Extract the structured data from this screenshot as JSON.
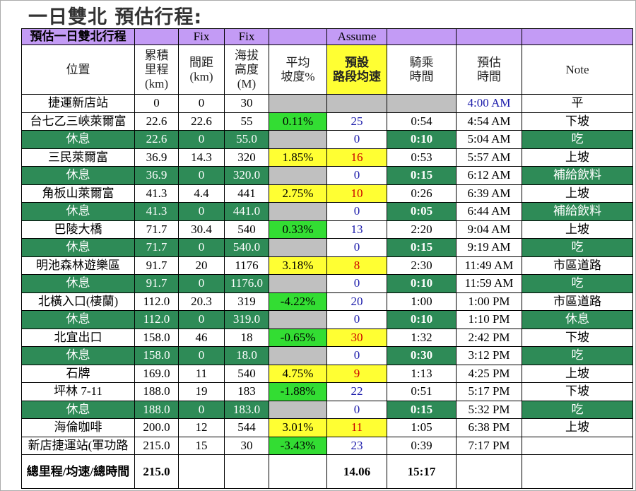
{
  "header": {
    "title": "一日雙北 預估行程:"
  },
  "table": {
    "top_row": [
      "預估一日雙北行程",
      "Fix",
      "Fix",
      "Assume"
    ],
    "head_row": [
      "位置",
      "累積\n里程\n(km)",
      "間距\n(km)",
      "海拔\n高度\n(M)",
      "平均\n坡度%",
      "預設\n路段均速",
      "騎乘\n時間",
      "預估\n時間",
      "Note"
    ],
    "rows": [
      [
        "捷運新店站",
        "0",
        "0",
        "30",
        null,
        null,
        null,
        "4:00 AM",
        "平"
      ],
      [
        "台七乙三峽萊爾富",
        "22.6",
        "22.6",
        "55",
        "0.11%",
        "25",
        "0:54",
        "4:54 AM",
        "下坡"
      ],
      [
        "休息",
        "22.6",
        "0",
        "55.0",
        null,
        "0",
        "0:10",
        "5:04 AM",
        "吃"
      ],
      [
        "三民萊爾富",
        "36.9",
        "14.3",
        "320",
        "1.85%",
        "16",
        "0:53",
        "5:57 AM",
        "上坡"
      ],
      [
        "休息",
        "36.9",
        "0",
        "320.0",
        null,
        "0",
        "0:15",
        "6:12 AM",
        "補給飲料"
      ],
      [
        "角板山萊爾富",
        "41.3",
        "4.4",
        "441",
        "2.75%",
        "10",
        "0:26",
        "6:39 AM",
        "上坡"
      ],
      [
        "休息",
        "41.3",
        "0",
        "441.0",
        null,
        "0",
        "0:05",
        "6:44 AM",
        "補給飲料"
      ],
      [
        "巴陵大橋",
        "71.7",
        "30.4",
        "540",
        "0.33%",
        "13",
        "2:20",
        "9:04 AM",
        "上坡"
      ],
      [
        "休息",
        "71.7",
        "0",
        "540.0",
        null,
        "0",
        "0:15",
        "9:19 AM",
        "吃"
      ],
      [
        "明池森林遊樂區",
        "91.7",
        "20",
        "1176",
        "3.18%",
        "8",
        "2:30",
        "11:49 AM",
        "市區道路"
      ],
      [
        "休息",
        "91.7",
        "0",
        "1176.0",
        null,
        "0",
        "0:10",
        "11:59 AM",
        "吃"
      ],
      [
        "北橫入口(棲蘭)",
        "112.0",
        "20.3",
        "319",
        "-4.22%",
        "20",
        "1:00",
        "1:00 PM",
        "市區道路"
      ],
      [
        "休息",
        "112.0",
        "0",
        "319.0",
        null,
        "0",
        "0:10",
        "1:10 PM",
        "休息"
      ],
      [
        "北宜出口",
        "158.0",
        "46",
        "18",
        "-0.65%",
        "30",
        "1:32",
        "2:42 PM",
        "下坡"
      ],
      [
        "休息",
        "158.0",
        "0",
        "18.0",
        null,
        "0",
        "0:30",
        "3:12 PM",
        "吃"
      ],
      [
        "石牌",
        "169.0",
        "11",
        "540",
        "4.75%",
        "9",
        "1:13",
        "4:25 PM",
        "上坡"
      ],
      [
        "坪林 7-11",
        "188.0",
        "19",
        "183",
        "-1.88%",
        "22",
        "0:51",
        "5:17 PM",
        "下坡"
      ],
      [
        "休息",
        "188.0",
        "0",
        "183.0",
        null,
        "0",
        "0:15",
        "5:32 PM",
        "吃"
      ],
      [
        "海倫咖啡",
        "200.0",
        "12",
        "544",
        "3.01%",
        "11",
        "1:05",
        "6:38 PM",
        "上坡"
      ],
      [
        "新店捷運站(軍功路",
        "215.0",
        "15",
        "30",
        "-3.43%",
        "23",
        "0:39",
        "7:17 PM",
        null
      ]
    ],
    "total_row": [
      "總里程/均速/總時間",
      "215.0",
      null,
      null,
      null,
      "14.06",
      "15:17",
      null,
      null
    ]
  }
}
